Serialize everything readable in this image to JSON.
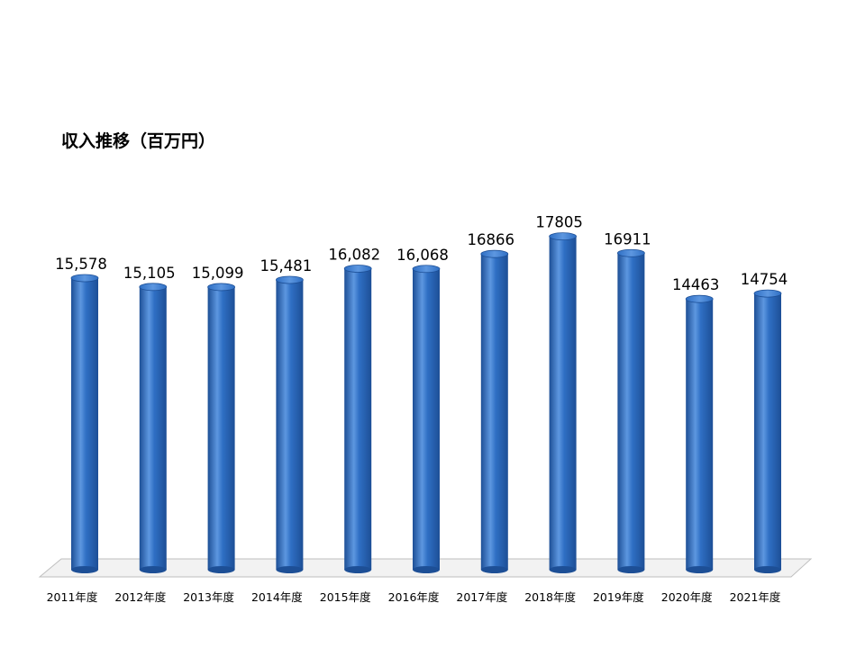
{
  "chart_data": {
    "type": "bar",
    "title": "収入推移（百万円）",
    "categories": [
      "2011年度",
      "2012年度",
      "2013年度",
      "2014年度",
      "2015年度",
      "2016年度",
      "2017年度",
      "2018年度",
      "2019年度",
      "2020年度",
      "2021年度"
    ],
    "series": [
      {
        "values": [
          15578,
          15105,
          15099,
          15481,
          16082,
          16068,
          16866,
          17805,
          16911,
          14463,
          14754
        ]
      }
    ],
    "data_labels": [
      "15,578",
      "15,105",
      "15,099",
      "15,481",
      "16,082",
      "16,068",
      "16866",
      "17805",
      "16911",
      "14463",
      "14754"
    ],
    "ylim": [
      0,
      18000
    ],
    "bar_shape": "cylinder",
    "grid": false,
    "legend": "none",
    "colors": {
      "bar_main": "#2f6fc4",
      "bar_light": "#5d97e0",
      "bar_dark": "#1d4f96",
      "floor_fill": "#f2f2f2",
      "floor_edge": "#bfbfbf"
    }
  }
}
